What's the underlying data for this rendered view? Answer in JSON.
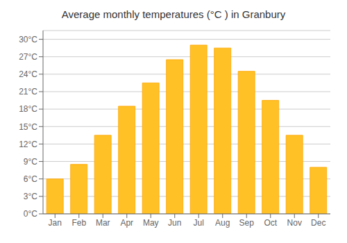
{
  "chart_data": {
    "type": "bar",
    "title": "Average monthly temperatures (°C ) in Granbury",
    "categories": [
      "Jan",
      "Feb",
      "Mar",
      "Apr",
      "May",
      "Jun",
      "Jul",
      "Aug",
      "Sep",
      "Oct",
      "Nov",
      "Dec"
    ],
    "values": [
      6.0,
      8.5,
      13.5,
      18.5,
      22.5,
      26.5,
      29.0,
      28.5,
      24.5,
      19.5,
      13.5,
      8.0
    ],
    "color": "#FFC125",
    "ylim": [
      0,
      31.5
    ],
    "yticks": [
      {
        "value": 0,
        "label": "0°C"
      },
      {
        "value": 3,
        "label": "3°C"
      },
      {
        "value": 6,
        "label": "6°C"
      },
      {
        "value": 9,
        "label": "9°C"
      },
      {
        "value": 12,
        "label": "12°C"
      },
      {
        "value": 15,
        "label": "15°C"
      },
      {
        "value": 18,
        "label": "18°C"
      },
      {
        "value": 21,
        "label": "21°C"
      },
      {
        "value": 24,
        "label": "24°C"
      },
      {
        "value": 27,
        "label": "27°C"
      },
      {
        "value": 30,
        "label": "30°C"
      }
    ],
    "grid": true
  }
}
